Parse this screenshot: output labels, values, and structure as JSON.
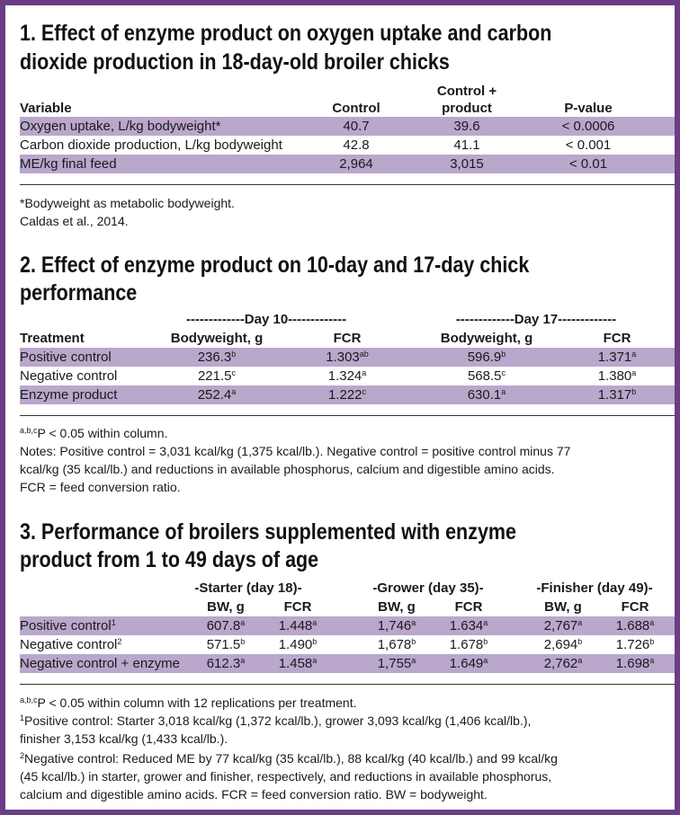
{
  "t1": {
    "title_l1": "1. Effect of enzyme product on oxygen uptake and carbon",
    "title_l2": "dioxide production in 18-day-old broiler chicks",
    "headers": {
      "variable": "Variable",
      "control": "Control",
      "cp1": "Control +",
      "cp2": "product",
      "pvalue": "P-value"
    },
    "rows": [
      {
        "variable": "Oxygen uptake, L/kg bodyweight*",
        "control": "40.7",
        "product": "39.6",
        "p": "< 0.0006"
      },
      {
        "variable": "Carbon dioxide production, L/kg bodyweight",
        "control": "42.8",
        "product": "41.1",
        "p": "< 0.001"
      },
      {
        "variable": "ME/kg final feed",
        "control": "2,964",
        "product": "3,015",
        "p": "< 0.01"
      }
    ],
    "note1": "*Bodyweight as metabolic bodyweight.",
    "note2": "Caldas et al., 2014."
  },
  "t2": {
    "title_l1": "2. Effect of enzyme product on 10-day and 17-day chick",
    "title_l2": "performance",
    "group1": "-------------Day 10-------------",
    "group2": "-------------Day 17-------------",
    "headers": {
      "treatment": "Treatment",
      "bw": "Bodyweight, g",
      "fcr": "FCR"
    },
    "rows": [
      {
        "name": "Positive control",
        "bw10": "236.3",
        "bw10s": "b",
        "fcr10": "1.303",
        "fcr10s": "ab",
        "bw17": "596.9",
        "bw17s": "b",
        "fcr17": "1.371",
        "fcr17s": "a"
      },
      {
        "name": "Negative control",
        "bw10": "221.5",
        "bw10s": "c",
        "fcr10": "1.324",
        "fcr10s": "a",
        "bw17": "568.5",
        "bw17s": "c",
        "fcr17": "1.380",
        "fcr17s": "a"
      },
      {
        "name": "Enzyme product",
        "bw10": "252.4",
        "bw10s": "a",
        "fcr10": "1.222",
        "fcr10s": "c",
        "bw17": "630.1",
        "bw17s": "a",
        "fcr17": "1.317",
        "fcr17s": "b"
      }
    ],
    "note_sup": "a,b,c",
    "note1": "P < 0.05 within column.",
    "note2": "Notes: Positive control = 3,031 kcal/kg (1,375 kcal/lb.). Negative control = positive control minus 77",
    "note3": "kcal/kg (35 kcal/lb.) and reductions in available phosphorus, calcium and digestible amino acids.",
    "note4": "FCR = feed conversion ratio."
  },
  "t3": {
    "title_l1": "3. Performance of broilers supplemented with enzyme",
    "title_l2": "product from 1 to 49 days of age",
    "group1": "-Starter (day 18)-",
    "group2": "-Grower (day 35)-",
    "group3": "-Finisher (day 49)-",
    "headers": {
      "bw": "BW, g",
      "fcr": "FCR"
    },
    "rows": [
      {
        "name": "Positive control",
        "name_sup": "1",
        "sbw": "607.8",
        "sbws": "a",
        "sfcr": "1.448",
        "sfcrs": "a",
        "gbw": "1,746",
        "gbws": "a",
        "gfcr": "1.634",
        "gfcrs": "a",
        "fbw": "2,767",
        "fbws": "a",
        "ffcr": "1.688",
        "ffcrs": "a"
      },
      {
        "name": "Negative control",
        "name_sup": "2",
        "sbw": "571.5",
        "sbws": "b",
        "sfcr": "1.490",
        "sfcrs": "b",
        "gbw": "1,678",
        "gbws": "b",
        "gfcr": "1.678",
        "gfcrs": "b",
        "fbw": "2,694",
        "fbws": "b",
        "ffcr": "1.726",
        "ffcrs": "b"
      },
      {
        "name": "Negative control + enzyme",
        "name_sup": "",
        "sbw": "612.3",
        "sbws": "a",
        "sfcr": "1.458",
        "sfcrs": "a",
        "gbw": "1,755",
        "gbws": "a",
        "gfcr": "1.649",
        "gfcrs": "a",
        "fbw": "2,762",
        "fbws": "a",
        "ffcr": "1.698",
        "ffcrs": "a"
      }
    ],
    "note_sup": "a,b,c",
    "note1": "P < 0.05 within column with 12 replications per treatment.",
    "n2_sup": "1",
    "note2": "Positive control: Starter 3,018 kcal/kg (1,372 kcal/lb.), grower 3,093 kcal/kg (1,406 kcal/lb.),",
    "note3": "finisher 3,153 kcal/kg (1,433 kcal/lb.).",
    "n4_sup": "2",
    "note4": "Negative control: Reduced ME by 77 kcal/kg (35 kcal/lb.), 88 kcal/kg (40 kcal/lb.) and 99 kcal/kg",
    "note5": "(45 kcal/lb.) in starter, grower and finisher, respectively, and reductions in available phosphorus,",
    "note6": "calcium and digestible amino acids. FCR = feed conversion ratio. BW = bodyweight."
  }
}
